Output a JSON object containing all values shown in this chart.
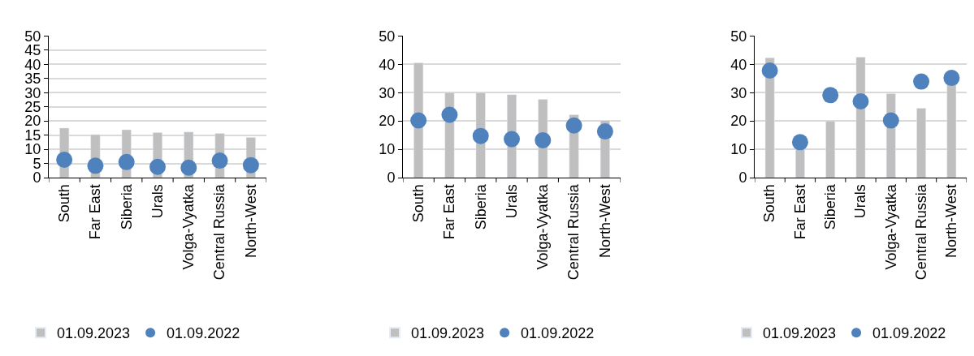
{
  "chart_data": [
    {
      "type": "bar",
      "categories": [
        "South",
        "Far East",
        "Siberia",
        "Urals",
        "Volga-Vyatka",
        "Central Russia",
        "North-West"
      ],
      "ylim": [
        0,
        50
      ],
      "yticks": [
        0,
        5,
        10,
        15,
        20,
        25,
        30,
        35,
        40,
        45,
        50
      ],
      "grid": "y",
      "legend": "bottom",
      "marker": "circle",
      "series": [
        {
          "name": "01.09.2023",
          "color": "#bfbfbf",
          "values": [
            17.5,
            15.2,
            16.9,
            15.9,
            16.1,
            15.6,
            14.2
          ]
        },
        {
          "name": "01.09.2022",
          "type": "scatter",
          "color": "#4f81bd",
          "values": [
            6.3,
            4.2,
            5.5,
            3.8,
            3.5,
            6.0,
            4.4
          ]
        }
      ]
    },
    {
      "type": "bar",
      "categories": [
        "South",
        "Far East",
        "Siberia",
        "Urals",
        "Volga-Vyatka",
        "Central Russia",
        "North-West"
      ],
      "ylim": [
        0,
        50
      ],
      "yticks": [
        0,
        10,
        20,
        30,
        40,
        50
      ],
      "grid": "y",
      "legend": "bottom",
      "marker": "circle",
      "series": [
        {
          "name": "01.09.2023",
          "color": "#bfbfbf",
          "values": [
            40.5,
            30.0,
            30.0,
            29.3,
            27.6,
            22.2,
            20.2
          ]
        },
        {
          "name": "01.09.2022",
          "type": "scatter",
          "color": "#4f81bd",
          "values": [
            20.2,
            22.2,
            14.7,
            13.6,
            13.2,
            18.4,
            16.3
          ]
        }
      ]
    },
    {
      "type": "bar",
      "categories": [
        "South",
        "Far East",
        "Siberia",
        "Urals",
        "Volga-Vyatka",
        "Central Russia",
        "North-West"
      ],
      "ylim": [
        0,
        50
      ],
      "yticks": [
        0,
        10,
        20,
        30,
        40,
        50
      ],
      "grid": "y",
      "legend": "bottom",
      "marker": "circle",
      "series": [
        {
          "name": "01.09.2023",
          "color": "#bfbfbf",
          "values": [
            42.3,
            10.0,
            20.0,
            42.5,
            29.6,
            24.5,
            33.0
          ]
        },
        {
          "name": "01.09.2022",
          "type": "scatter",
          "color": "#4f81bd",
          "values": [
            37.8,
            12.5,
            29.1,
            26.9,
            20.2,
            33.9,
            35.2
          ]
        }
      ]
    }
  ]
}
